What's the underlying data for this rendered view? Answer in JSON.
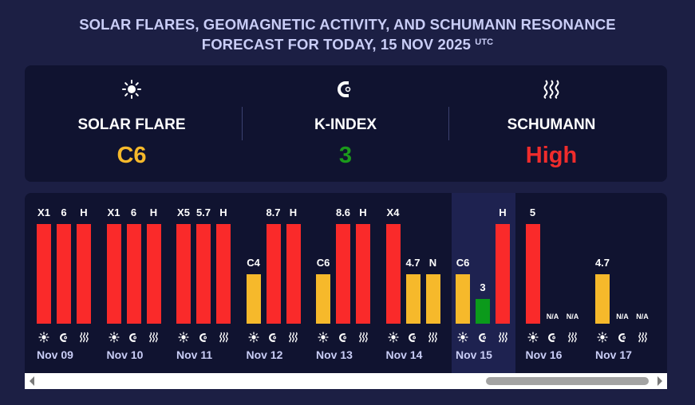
{
  "title": {
    "line1": "SOLAR FLARES, GEOMAGNETIC ACTIVITY, AND SCHUMANN RESONANCE",
    "line2": "FORECAST FOR TODAY, 15 NOV 2025",
    "utc": "UTC"
  },
  "summary": {
    "solar_flare": {
      "label": "SOLAR FLARE",
      "value": "C6",
      "color": "#f6b92b",
      "icon": "sun-icon"
    },
    "k_index": {
      "label": "K-INDEX",
      "value": "3",
      "color": "#1b9a1b",
      "icon": "magnet-icon"
    },
    "schumann": {
      "label": "SCHUMANN",
      "value": "High",
      "color": "#f02c2c",
      "icon": "waves-icon"
    }
  },
  "colors": {
    "red": "#fa2a2a",
    "yellow": "#f6b92b",
    "green": "#0b9a1b"
  },
  "chart_data": {
    "type": "bar",
    "series_kinds": [
      "solar-flare",
      "k-index",
      "schumann"
    ],
    "days": [
      {
        "date": "Nov 09",
        "bars": [
          {
            "label": "X1",
            "level": 1.0,
            "color": "red"
          },
          {
            "label": "6",
            "level": 1.0,
            "color": "red"
          },
          {
            "label": "H",
            "level": 1.0,
            "color": "red"
          }
        ]
      },
      {
        "date": "Nov 10",
        "bars": [
          {
            "label": "X1",
            "level": 1.0,
            "color": "red"
          },
          {
            "label": "6",
            "level": 1.0,
            "color": "red"
          },
          {
            "label": "H",
            "level": 1.0,
            "color": "red"
          }
        ]
      },
      {
        "date": "Nov 11",
        "bars": [
          {
            "label": "X5",
            "level": 1.0,
            "color": "red"
          },
          {
            "label": "5.7",
            "level": 1.0,
            "color": "red"
          },
          {
            "label": "H",
            "level": 1.0,
            "color": "red"
          }
        ]
      },
      {
        "date": "Nov 12",
        "bars": [
          {
            "label": "C4",
            "level": 0.5,
            "color": "yellow"
          },
          {
            "label": "8.7",
            "level": 1.0,
            "color": "red"
          },
          {
            "label": "H",
            "level": 1.0,
            "color": "red"
          }
        ]
      },
      {
        "date": "Nov 13",
        "bars": [
          {
            "label": "C6",
            "level": 0.5,
            "color": "yellow"
          },
          {
            "label": "8.6",
            "level": 1.0,
            "color": "red"
          },
          {
            "label": "H",
            "level": 1.0,
            "color": "red"
          }
        ]
      },
      {
        "date": "Nov 14",
        "bars": [
          {
            "label": "X4",
            "level": 1.0,
            "color": "red"
          },
          {
            "label": "4.7",
            "level": 0.5,
            "color": "yellow"
          },
          {
            "label": "N",
            "level": 0.5,
            "color": "yellow"
          }
        ]
      },
      {
        "date": "Nov 15",
        "today": true,
        "bars": [
          {
            "label": "C6",
            "level": 0.5,
            "color": "yellow"
          },
          {
            "label": "3",
            "level": 0.25,
            "color": "green"
          },
          {
            "label": "H",
            "level": 1.0,
            "color": "red"
          }
        ]
      },
      {
        "date": "Nov 16",
        "bars": [
          {
            "label": "5",
            "level": 1.0,
            "color": "red"
          },
          {
            "label": "N/A",
            "level": 0,
            "color": "none"
          },
          {
            "label": "N/A",
            "level": 0,
            "color": "none"
          }
        ]
      },
      {
        "date": "Nov 17",
        "bars": [
          {
            "label": "4.7",
            "level": 0.5,
            "color": "yellow"
          },
          {
            "label": "N/A",
            "level": 0,
            "color": "none"
          },
          {
            "label": "N/A",
            "level": 0,
            "color": "none"
          }
        ]
      }
    ]
  }
}
